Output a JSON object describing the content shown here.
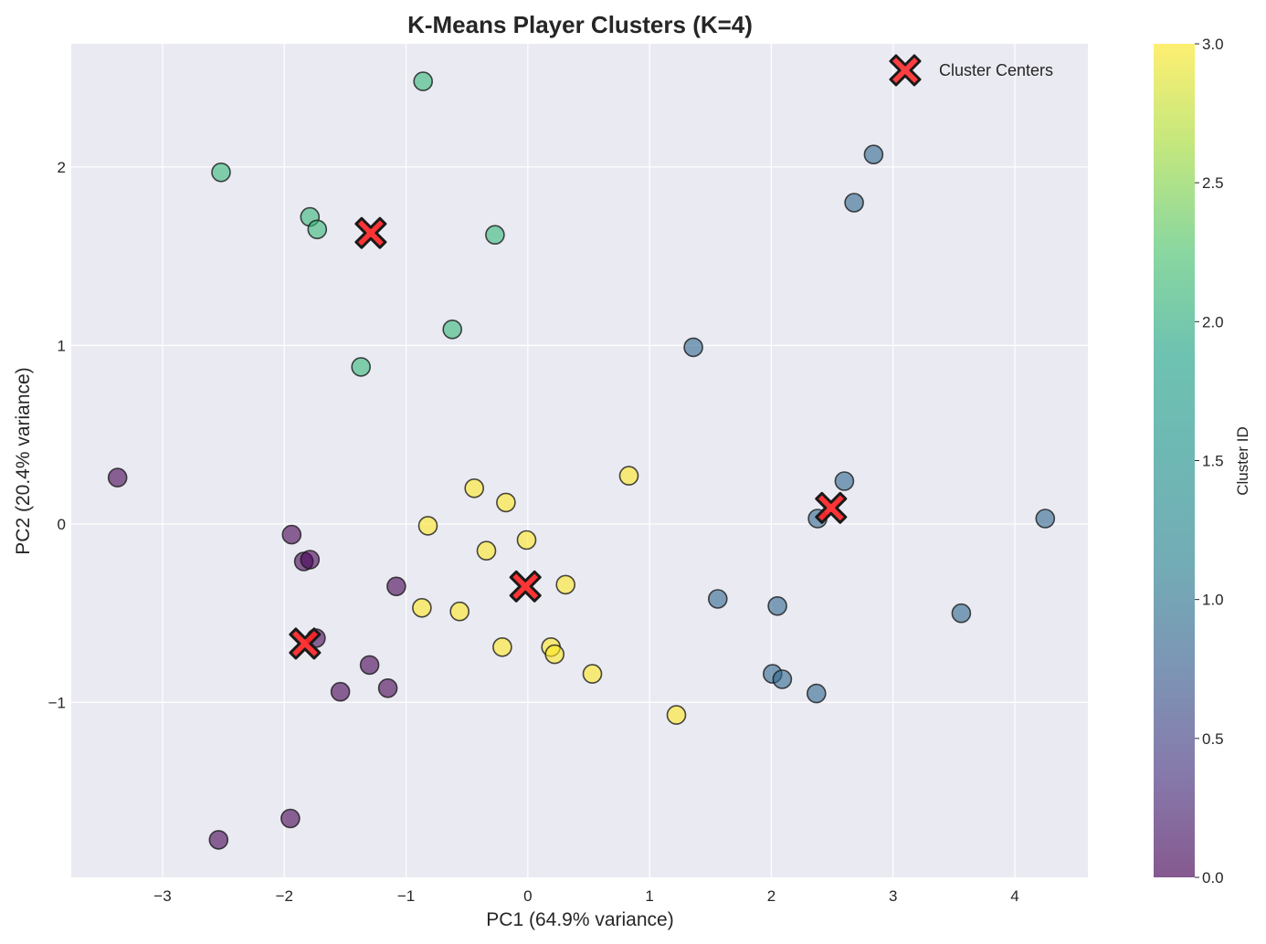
{
  "chart_data": {
    "type": "scatter",
    "title": "K-Means Player Clusters (K=4)",
    "xlabel": "PC1 (64.9% variance)",
    "ylabel": "PC2 (20.4% variance)",
    "xlim": [
      -3.75,
      4.6
    ],
    "ylim": [
      -1.98,
      2.69
    ],
    "xticks": [
      -3,
      -2,
      -1,
      0,
      1,
      2,
      3,
      4
    ],
    "yticks": [
      -1,
      0,
      1,
      2
    ],
    "tick_labels_x": [
      "−3",
      "−2",
      "−1",
      "0",
      "1",
      "2",
      "3",
      "4"
    ],
    "tick_labels_y": [
      "−1",
      "0",
      "1",
      "2"
    ],
    "grid": true,
    "colormap": "viridis",
    "colorbar": {
      "label": "Cluster ID",
      "range": [
        0.0,
        3.0
      ],
      "ticks": [
        "0.0",
        "0.5",
        "1.0",
        "1.5",
        "2.0",
        "2.5",
        "3.0"
      ]
    },
    "legend": {
      "position": "top-right",
      "entries": [
        "Cluster Centers"
      ]
    },
    "cluster_colors": [
      "#440154",
      "#31688e",
      "#35b779",
      "#fde725"
    ],
    "center_color": "#ff2020",
    "points": [
      {
        "x": -3.37,
        "y": 0.26,
        "cluster": 0
      },
      {
        "x": -1.94,
        "y": -0.06,
        "cluster": 0
      },
      {
        "x": -1.84,
        "y": -0.21,
        "cluster": 0
      },
      {
        "x": -1.79,
        "y": -0.2,
        "cluster": 0
      },
      {
        "x": -1.08,
        "y": -0.35,
        "cluster": 0
      },
      {
        "x": -1.74,
        "y": -0.64,
        "cluster": 0
      },
      {
        "x": -1.3,
        "y": -0.79,
        "cluster": 0
      },
      {
        "x": -1.54,
        "y": -0.94,
        "cluster": 0
      },
      {
        "x": -1.15,
        "y": -0.92,
        "cluster": 0
      },
      {
        "x": -1.95,
        "y": -1.65,
        "cluster": 0
      },
      {
        "x": -2.54,
        "y": -1.77,
        "cluster": 0
      },
      {
        "x": -0.86,
        "y": 2.48,
        "cluster": 2
      },
      {
        "x": -2.52,
        "y": 1.97,
        "cluster": 2
      },
      {
        "x": -1.79,
        "y": 1.72,
        "cluster": 2
      },
      {
        "x": -1.73,
        "y": 1.65,
        "cluster": 2
      },
      {
        "x": -0.27,
        "y": 1.62,
        "cluster": 2
      },
      {
        "x": -0.62,
        "y": 1.09,
        "cluster": 2
      },
      {
        "x": -1.37,
        "y": 0.88,
        "cluster": 2
      },
      {
        "x": 2.84,
        "y": 2.07,
        "cluster": 1
      },
      {
        "x": 2.68,
        "y": 1.8,
        "cluster": 1
      },
      {
        "x": 1.36,
        "y": 0.99,
        "cluster": 1
      },
      {
        "x": 2.6,
        "y": 0.24,
        "cluster": 1
      },
      {
        "x": 2.38,
        "y": 0.03,
        "cluster": 1
      },
      {
        "x": 4.25,
        "y": 0.03,
        "cluster": 1
      },
      {
        "x": 1.56,
        "y": -0.42,
        "cluster": 1
      },
      {
        "x": 2.05,
        "y": -0.46,
        "cluster": 1
      },
      {
        "x": 3.56,
        "y": -0.5,
        "cluster": 1
      },
      {
        "x": 2.01,
        "y": -0.84,
        "cluster": 1
      },
      {
        "x": 2.09,
        "y": -0.87,
        "cluster": 1
      },
      {
        "x": 2.37,
        "y": -0.95,
        "cluster": 1
      },
      {
        "x": 0.83,
        "y": 0.27,
        "cluster": 3
      },
      {
        "x": -0.44,
        "y": 0.2,
        "cluster": 3
      },
      {
        "x": -0.18,
        "y": 0.12,
        "cluster": 3
      },
      {
        "x": -0.82,
        "y": -0.01,
        "cluster": 3
      },
      {
        "x": -0.01,
        "y": -0.09,
        "cluster": 3
      },
      {
        "x": -0.34,
        "y": -0.15,
        "cluster": 3
      },
      {
        "x": 0.31,
        "y": -0.34,
        "cluster": 3
      },
      {
        "x": -0.87,
        "y": -0.47,
        "cluster": 3
      },
      {
        "x": -0.56,
        "y": -0.49,
        "cluster": 3
      },
      {
        "x": -0.21,
        "y": -0.69,
        "cluster": 3
      },
      {
        "x": 0.19,
        "y": -0.69,
        "cluster": 3
      },
      {
        "x": 0.22,
        "y": -0.73,
        "cluster": 3
      },
      {
        "x": 0.53,
        "y": -0.84,
        "cluster": 3
      },
      {
        "x": 1.22,
        "y": -1.07,
        "cluster": 3
      }
    ],
    "centers": [
      {
        "x": -1.29,
        "y": 1.63
      },
      {
        "x": -1.83,
        "y": -0.67
      },
      {
        "x": -0.02,
        "y": -0.35
      },
      {
        "x": 2.49,
        "y": 0.09
      }
    ]
  }
}
